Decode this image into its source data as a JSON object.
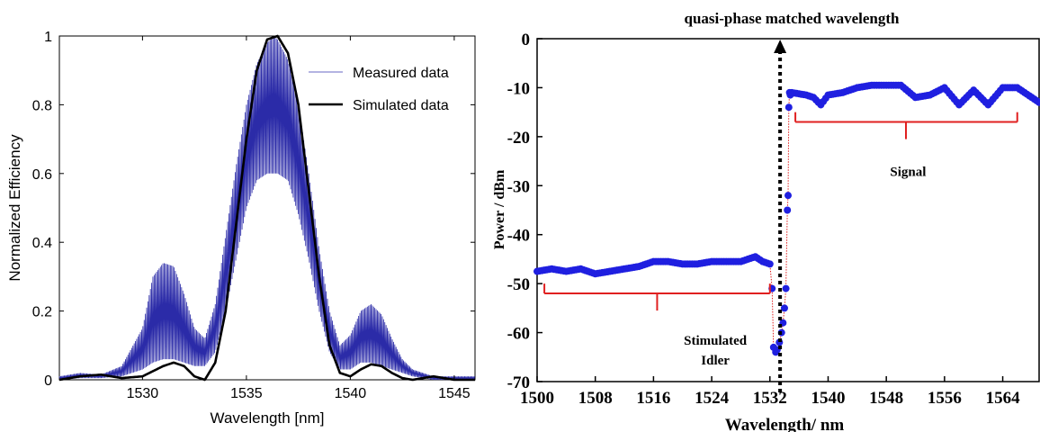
{
  "chart_data": [
    {
      "type": "line",
      "title": "",
      "xlabel": "Wavelength [nm]",
      "ylabel": "Normalized Efficiency",
      "xlim": [
        1526,
        1546
      ],
      "ylim": [
        0,
        1
      ],
      "xticks": [
        "1530",
        "1535",
        "1540",
        "1545"
      ],
      "xtick_values": [
        1530,
        1535,
        1540,
        1545
      ],
      "yticks": [
        "0",
        "0.2",
        "0.4",
        "0.6",
        "0.8",
        "1"
      ],
      "ytick_values": [
        0,
        0.2,
        0.4,
        0.6,
        0.8,
        1
      ],
      "grid": false,
      "legend_position": "top-right",
      "series": [
        {
          "name": "Measured data",
          "color": "#2b2ba8",
          "style": "thin-oscillating",
          "x": [
            1526,
            1527,
            1528,
            1529,
            1530,
            1530.5,
            1531,
            1531.5,
            1532,
            1532.5,
            1533,
            1533.5,
            1534,
            1534.5,
            1535,
            1535.5,
            1536,
            1536.3,
            1536.5,
            1537,
            1537.5,
            1538,
            1538.5,
            1539,
            1539.5,
            1540,
            1540.5,
            1541,
            1541.5,
            1542,
            1542.5,
            1543,
            1544,
            1545,
            1546
          ],
          "y_upper": [
            0.01,
            0.02,
            0.015,
            0.04,
            0.15,
            0.3,
            0.34,
            0.33,
            0.25,
            0.15,
            0.12,
            0.22,
            0.42,
            0.62,
            0.8,
            0.92,
            0.98,
            1.0,
            0.99,
            0.93,
            0.8,
            0.6,
            0.38,
            0.2,
            0.1,
            0.13,
            0.2,
            0.22,
            0.19,
            0.12,
            0.06,
            0.03,
            0.01,
            0.01,
            0.01
          ],
          "y_lower": [
            0.0,
            0.005,
            0.005,
            0.01,
            0.03,
            0.05,
            0.06,
            0.06,
            0.05,
            0.04,
            0.04,
            0.08,
            0.2,
            0.35,
            0.5,
            0.58,
            0.6,
            0.6,
            0.6,
            0.58,
            0.48,
            0.35,
            0.2,
            0.08,
            0.03,
            0.03,
            0.05,
            0.05,
            0.04,
            0.03,
            0.02,
            0.01,
            0.0,
            0.0,
            0.0
          ]
        },
        {
          "name": "Simulated data",
          "color": "#000000",
          "style": "thick",
          "x": [
            1526,
            1527,
            1528,
            1529,
            1530,
            1531,
            1531.5,
            1532,
            1532.5,
            1533,
            1533.5,
            1534,
            1534.5,
            1535,
            1535.5,
            1536,
            1536.5,
            1537,
            1537.5,
            1538,
            1538.5,
            1539,
            1539.5,
            1540,
            1540.5,
            1541,
            1541.5,
            1542,
            1542.5,
            1543,
            1544,
            1545,
            1546
          ],
          "y": [
            0.0,
            0.01,
            0.015,
            0.005,
            0.01,
            0.04,
            0.05,
            0.04,
            0.01,
            0.0,
            0.05,
            0.2,
            0.45,
            0.7,
            0.9,
            0.99,
            1.0,
            0.95,
            0.8,
            0.55,
            0.3,
            0.1,
            0.02,
            0.01,
            0.03,
            0.045,
            0.04,
            0.02,
            0.005,
            0.0,
            0.01,
            0.0,
            0.0
          ]
        }
      ]
    },
    {
      "type": "scatter",
      "title": "quasi-phase matched wavelength",
      "xlabel": "Wavelength/ nm",
      "ylabel": "Power / dBm",
      "xlim": [
        1500,
        1569
      ],
      "ylim": [
        -70,
        0
      ],
      "xticks": [
        "1500",
        "1508",
        "1516",
        "1524",
        "1532",
        "1540",
        "1548",
        "1556",
        "1564"
      ],
      "xtick_values": [
        1500,
        1508,
        1516,
        1524,
        1532,
        1540,
        1548,
        1556,
        1564
      ],
      "yticks": [
        "0",
        "-10",
        "-20",
        "-30",
        "-40",
        "-50",
        "-60",
        "-70"
      ],
      "ytick_values": [
        0,
        -10,
        -20,
        -30,
        -40,
        -50,
        -60,
        -70
      ],
      "grid": false,
      "marker_color": "#1f1fe0",
      "connector_color": "#e02020",
      "qpm_line_x": 1533.4,
      "idler_points": {
        "x": [
          1500,
          1502,
          1504,
          1506,
          1508,
          1510,
          1512,
          1514,
          1516,
          1518,
          1520,
          1522,
          1524,
          1526,
          1528,
          1530,
          1531,
          1532
        ],
        "y": [
          -47.5,
          -47,
          -47.5,
          -47,
          -48,
          -47.5,
          -47,
          -46.5,
          -45.5,
          -45.5,
          -46,
          -46,
          -45.5,
          -45.5,
          -45.5,
          -44.5,
          -45.5,
          -46
        ]
      },
      "transition_points": {
        "x": [
          1532.3,
          1532.5,
          1532.8,
          1533,
          1533.3,
          1533.6,
          1533.8,
          1534,
          1534.2,
          1534.4,
          1534.5,
          1534.6,
          1534.7,
          1534.8
        ],
        "y": [
          -51,
          -63,
          -64,
          -63.5,
          -62,
          -60,
          -58,
          -55,
          -51,
          -35,
          -32,
          -14,
          -11,
          -11.5
        ]
      },
      "signal_points": {
        "x": [
          1535,
          1537,
          1538,
          1539,
          1540,
          1542,
          1544,
          1546,
          1548,
          1550,
          1552,
          1554,
          1556,
          1558,
          1560,
          1562,
          1564,
          1566,
          1568,
          1569
        ],
        "y": [
          -11,
          -11.5,
          -12,
          -13.5,
          -11.5,
          -11,
          -10,
          -9.5,
          -9.5,
          -9.5,
          -12,
          -11.5,
          -10,
          -13.5,
          -10.5,
          -13.5,
          -10,
          -10,
          -12,
          -13
        ]
      },
      "annotations": [
        {
          "text": "Stimulated",
          "x": 1524.5,
          "y": -62.5
        },
        {
          "text": "Idler",
          "x": 1524.5,
          "y": -66.5
        },
        {
          "text": "Signal",
          "x": 1551,
          "y": -28
        }
      ],
      "brackets": [
        {
          "x1": 1501,
          "x2": 1532,
          "y": -52,
          "tick_x": 1516.5,
          "tick_y": -55.5,
          "label": "Stimulated Idler"
        },
        {
          "x1": 1535.5,
          "x2": 1566,
          "y": -17,
          "tick_x": 1550.7,
          "tick_y": -20.5,
          "label": "Signal"
        }
      ]
    }
  ]
}
